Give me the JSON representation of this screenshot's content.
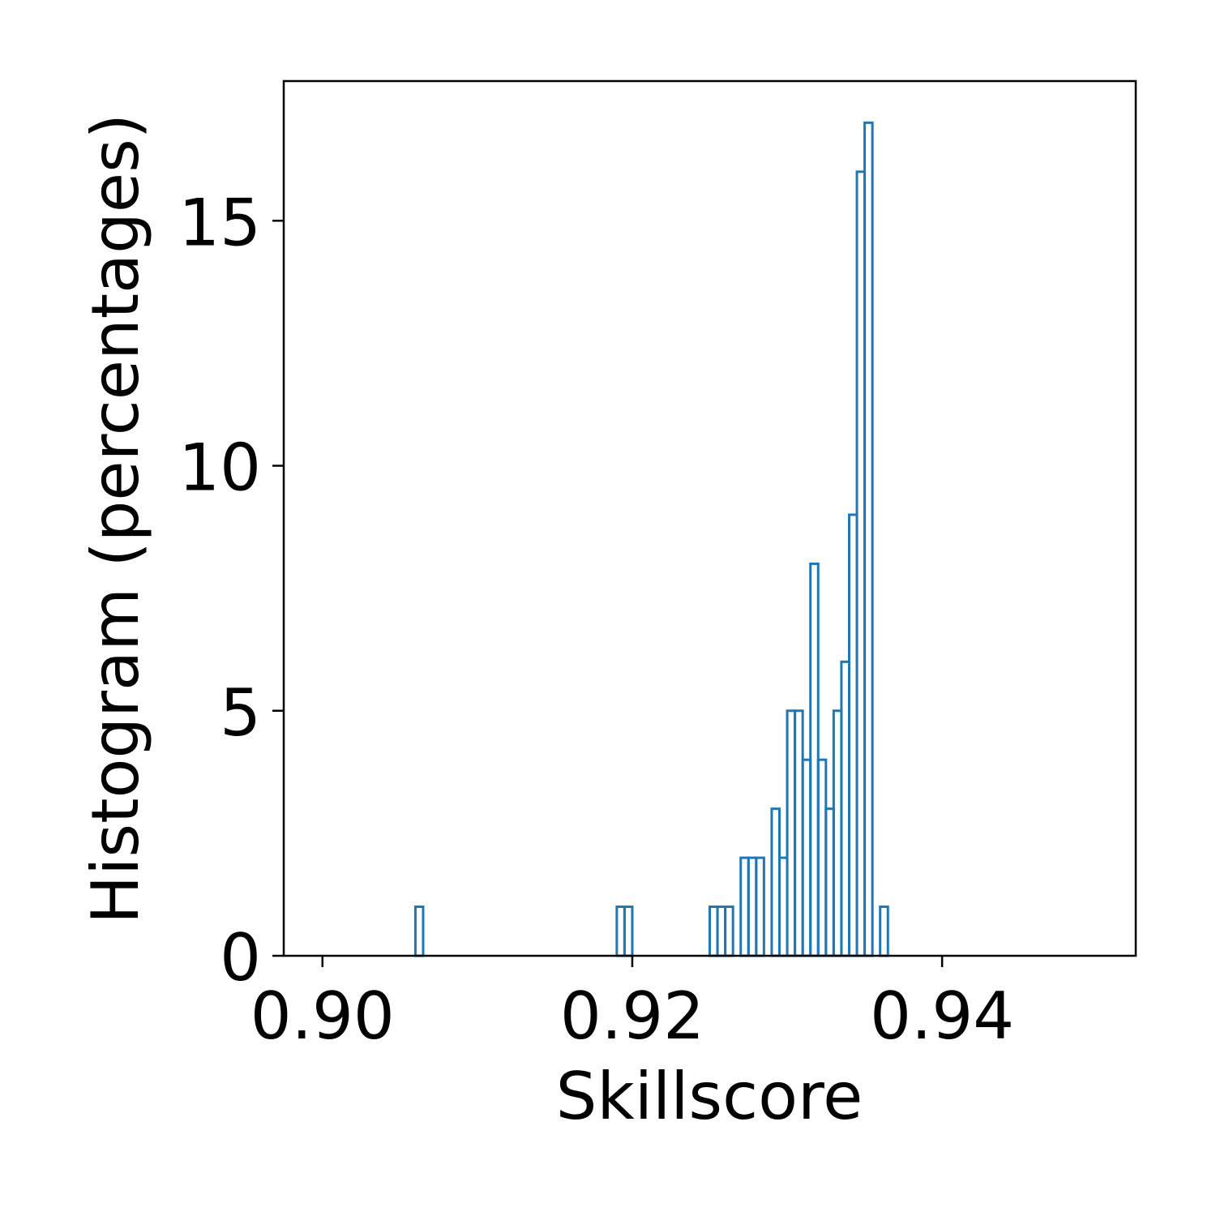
{
  "chart_data": {
    "type": "bar",
    "histtype": "step",
    "title": "",
    "xlabel": "Skillscore",
    "ylabel": "Histogram (percentages)",
    "xlim": [
      0.8975,
      0.9525
    ],
    "ylim": [
      0,
      17.85
    ],
    "bin_start": 0.9,
    "bin_width": 0.0005,
    "values": [
      0,
      0,
      0,
      0,
      0,
      0,
      0,
      0,
      0,
      0,
      0,
      0,
      1,
      0,
      0,
      0,
      0,
      0,
      0,
      0,
      0,
      0,
      0,
      0,
      0,
      0,
      0,
      0,
      0,
      0,
      0,
      0,
      0,
      0,
      0,
      0,
      0,
      0,
      1,
      1,
      0,
      0,
      0,
      0,
      0,
      0,
      0,
      0,
      0,
      0,
      1,
      1,
      1,
      0,
      2,
      2,
      2,
      0,
      3,
      2,
      5,
      5,
      4,
      8,
      4,
      3,
      5,
      6,
      9,
      16,
      17,
      0,
      1,
      0,
      0,
      0,
      0,
      0,
      0,
      0,
      0,
      0,
      0,
      0,
      0,
      0,
      0,
      0,
      0,
      0,
      0,
      0,
      0,
      0,
      0,
      0,
      0,
      0,
      0,
      0,
      0,
      0,
      0,
      0,
      0,
      0,
      0,
      0,
      0,
      0,
      0,
      0,
      0,
      0,
      0,
      0,
      0,
      0,
      0,
      0,
      0,
      0,
      0,
      0,
      0,
      0,
      0,
      0,
      0,
      0,
      0,
      0,
      0,
      0,
      0,
      0,
      0,
      0,
      0,
      0,
      0,
      0,
      0,
      0,
      0,
      0,
      0,
      0,
      0,
      0,
      0,
      0,
      0,
      0,
      0,
      0,
      0,
      0,
      0,
      0,
      0,
      0,
      0,
      0,
      0,
      0,
      0,
      0,
      0,
      0,
      0,
      0,
      0,
      0,
      0,
      0,
      0,
      0,
      0,
      0,
      0,
      0,
      0,
      0,
      0,
      0,
      0,
      0,
      0,
      0,
      0,
      0,
      0,
      0,
      0,
      0,
      0,
      0,
      0,
      0,
      0,
      0,
      0,
      0,
      0,
      0,
      0,
      0
    ],
    "x_ticks": [
      {
        "value": 0.9,
        "label": "0.90"
      },
      {
        "value": 0.92,
        "label": "0.92"
      },
      {
        "value": 0.94,
        "label": "0.94"
      }
    ],
    "y_ticks": [
      {
        "value": 0,
        "label": "0"
      },
      {
        "value": 5,
        "label": "5"
      },
      {
        "value": 10,
        "label": "10"
      },
      {
        "value": 15,
        "label": "15"
      }
    ],
    "bar_color": "#1f77b4",
    "grid": false,
    "legend": "none"
  }
}
